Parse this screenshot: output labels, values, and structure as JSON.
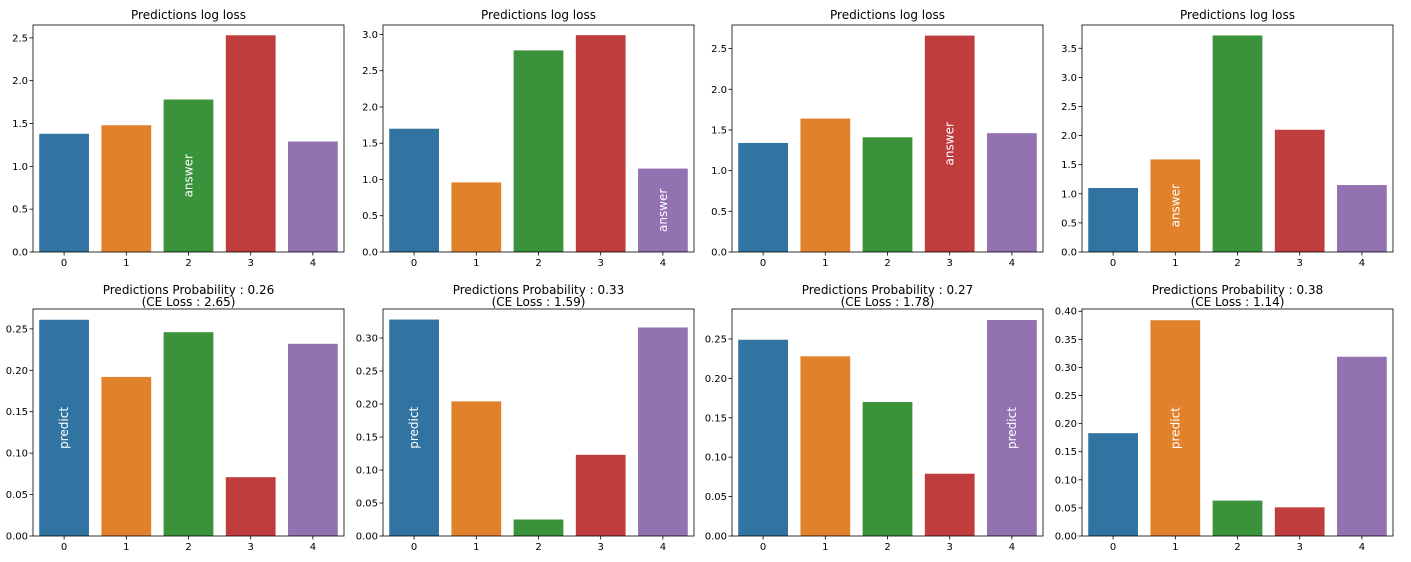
{
  "colors": [
    "#3274a1",
    "#e1812c",
    "#3a923a",
    "#c03d3e",
    "#9372b2"
  ],
  "chart_data": [
    {
      "type": "bar",
      "title": "Predictions log loss",
      "categories": [
        "0",
        "1",
        "2",
        "3",
        "4"
      ],
      "values": [
        1.38,
        1.48,
        1.78,
        2.53,
        1.29
      ],
      "ylim": [
        0,
        2.65
      ],
      "yticks": [
        "0.0",
        "0.5",
        "1.0",
        "1.5",
        "2.0",
        "2.5"
      ],
      "ytick_values": [
        0,
        0.5,
        1.0,
        1.5,
        2.0,
        2.5
      ],
      "annotation": {
        "text": "answer",
        "bar": 2
      }
    },
    {
      "type": "bar",
      "title": "Predictions log loss",
      "categories": [
        "0",
        "1",
        "2",
        "3",
        "4"
      ],
      "values": [
        1.7,
        0.96,
        2.78,
        2.99,
        1.15
      ],
      "ylim": [
        0,
        3.13
      ],
      "yticks": [
        "0.0",
        "0.5",
        "1.0",
        "1.5",
        "2.0",
        "2.5",
        "3.0"
      ],
      "ytick_values": [
        0,
        0.5,
        1.0,
        1.5,
        2.0,
        2.5,
        3.0
      ],
      "annotation": {
        "text": "answer",
        "bar": 4
      }
    },
    {
      "type": "bar",
      "title": "Predictions log loss",
      "categories": [
        "0",
        "1",
        "2",
        "3",
        "4"
      ],
      "values": [
        1.34,
        1.64,
        1.41,
        2.66,
        1.46
      ],
      "ylim": [
        0,
        2.79
      ],
      "yticks": [
        "0.0",
        "0.5",
        "1.0",
        "1.5",
        "2.0",
        "2.5"
      ],
      "ytick_values": [
        0,
        0.5,
        1.0,
        1.5,
        2.0,
        2.5
      ],
      "annotation": {
        "text": "answer",
        "bar": 3
      }
    },
    {
      "type": "bar",
      "title": "Predictions log loss",
      "categories": [
        "0",
        "1",
        "2",
        "3",
        "4"
      ],
      "values": [
        1.1,
        1.59,
        3.72,
        2.1,
        1.15
      ],
      "ylim": [
        0,
        3.9
      ],
      "yticks": [
        "0.0",
        "0.5",
        "1.0",
        "1.5",
        "2.0",
        "2.5",
        "3.0",
        "3.5"
      ],
      "ytick_values": [
        0,
        0.5,
        1.0,
        1.5,
        2.0,
        2.5,
        3.0,
        3.5
      ],
      "annotation": {
        "text": "answer",
        "bar": 1
      }
    },
    {
      "type": "bar",
      "title": "Predictions Probability : 0.26",
      "subtitle": "(CE Loss : 2.65)",
      "categories": [
        "0",
        "1",
        "2",
        "3",
        "4"
      ],
      "values": [
        0.261,
        0.192,
        0.246,
        0.071,
        0.232
      ],
      "ylim": [
        0,
        0.274
      ],
      "yticks": [
        "0.00",
        "0.05",
        "0.10",
        "0.15",
        "0.20",
        "0.25"
      ],
      "ytick_values": [
        0,
        0.05,
        0.1,
        0.15,
        0.2,
        0.25
      ],
      "annotation": {
        "text": "predict",
        "bar": 0
      }
    },
    {
      "type": "bar",
      "title": "Predictions Probability : 0.33",
      "subtitle": "(CE Loss : 1.59)",
      "categories": [
        "0",
        "1",
        "2",
        "3",
        "4"
      ],
      "values": [
        0.328,
        0.204,
        0.025,
        0.123,
        0.316
      ],
      "ylim": [
        0,
        0.344
      ],
      "yticks": [
        "0.00",
        "0.05",
        "0.10",
        "0.15",
        "0.20",
        "0.25",
        "0.30"
      ],
      "ytick_values": [
        0,
        0.05,
        0.1,
        0.15,
        0.2,
        0.25,
        0.3
      ],
      "annotation": {
        "text": "predict",
        "bar": 0
      }
    },
    {
      "type": "bar",
      "title": "Predictions Probability : 0.27",
      "subtitle": "(CE Loss : 1.78)",
      "categories": [
        "0",
        "1",
        "2",
        "3",
        "4"
      ],
      "values": [
        0.249,
        0.228,
        0.17,
        0.079,
        0.274
      ],
      "ylim": [
        0,
        0.288
      ],
      "yticks": [
        "0.00",
        "0.05",
        "0.10",
        "0.15",
        "0.20",
        "0.25"
      ],
      "ytick_values": [
        0,
        0.05,
        0.1,
        0.15,
        0.2,
        0.25
      ],
      "annotation": {
        "text": "predict",
        "bar": 4
      }
    },
    {
      "type": "bar",
      "title": "Predictions Probability : 0.38",
      "subtitle": "(CE Loss : 1.14)",
      "categories": [
        "0",
        "1",
        "2",
        "3",
        "4"
      ],
      "values": [
        0.183,
        0.384,
        0.063,
        0.051,
        0.319
      ],
      "ylim": [
        0,
        0.404
      ],
      "yticks": [
        "0.00",
        "0.05",
        "0.10",
        "0.15",
        "0.20",
        "0.25",
        "0.30",
        "0.35",
        "0.40"
      ],
      "ytick_values": [
        0,
        0.05,
        0.1,
        0.15,
        0.2,
        0.25,
        0.3,
        0.35,
        0.4
      ],
      "annotation": {
        "text": "predict",
        "bar": 1
      }
    }
  ]
}
